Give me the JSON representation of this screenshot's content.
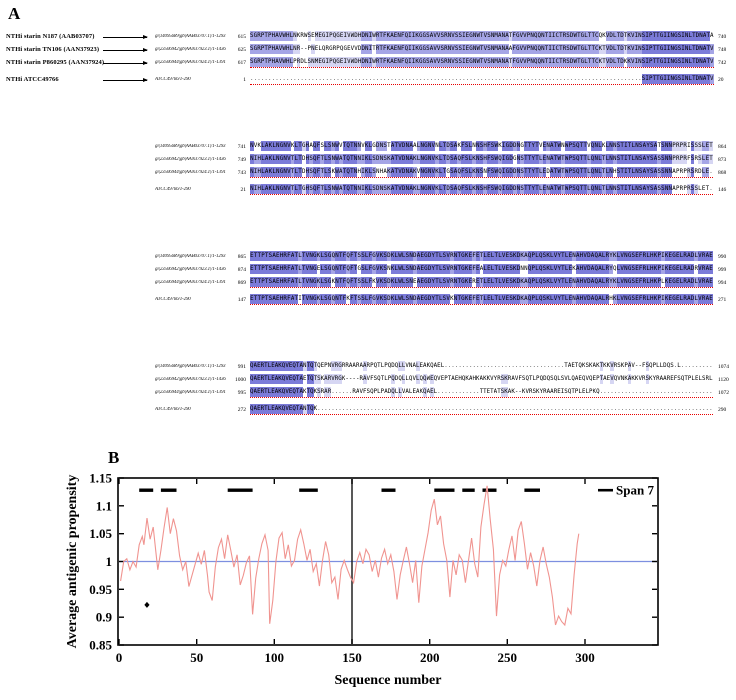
{
  "figure": {
    "panel_a_label": "A",
    "panel_b_label": "B"
  },
  "alignment": {
    "strain_labels": [
      "NTHi starin N187 (AAB03707)",
      "NTHi starin TN106 (AAN37923)",
      "NTHi starin P860295 (AAN37924)",
      "NTHi ATCC49766"
    ],
    "row_ids": [
      "gi|14095689|gb|AAB03707.1|/1-1293",
      "gi|23506942|gb|AAN37923.1|/1-1436",
      "gi|23506944|gb|AAN37924.1|/1-1391",
      "ATCC49766/1-290"
    ],
    "colors": {
      "conserved_dark": "#7b7bd9",
      "conserved_medium": "#a5a5e6",
      "conserved_light": "#d6d6f3",
      "underline_red": "#e80000"
    },
    "blocks": [
      {
        "starts": [
          615,
          625,
          617,
          1
        ],
        "ends": [
          740,
          748,
          742,
          20
        ],
        "seqs": [
          "SGRPTPHAVWHLNKRWSEMEGIPQGEIVWDHDNIWRTFKAENFQIIKGGSAVVSRNVSSIEGNWTVSNMANATFGVVPNQQNTIICTRSDWTGLTTCQKVDLTDTKVINSIPTTGIINGSINLTDNATA",
          "SGRPTPHAVWHLNR--PNELQRGRPQGEVVDDNITRTFKAENFQIIKGGSAVVSRNVSSIEGNWTVSNMANAAFGVVPNQQNTIICTRSDWTGLTTCKTVDLTDTKVINSIPTTGIINGSINLTDNATV",
          "SGRPTPHAVWHLPRDLSNMEGIPQGEIVWDHDNIWRTFKAENFQIIKGGSAVVSRNVSSIEGNWTVSNMANATFGVVPNQQNTIICTRSDWTGLTTCKTVDLTDKKVINSIPTTGIINGSINLTDNATV",
          ".............................................................................................................SIPTTGIINGSINLTDNATV"
        ]
      },
      {
        "starts": [
          741,
          749,
          743,
          21
        ],
        "ends": [
          864,
          873,
          868,
          146
        ],
        "seqs": [
          "NVKLAKLNGNVKLTGHAQFSLSNWVTQTNNVKLGDNSTATVDNAALNGNVNLTDSAKFSLNNSHFSWKIGDDNGTTYTVENATWNWPSQTTVQNLKLNNSTITLNSAYSATSNNPRPRISSSLET",
          "NIHLAKLNGNVTLTDHSQFTLSNWATQTNNIKLSDNSKATVDNAKLNGNVKLTDSAQFSLKNSHFSWQIGDGNSTTYTLENATWTWPSQTTLQNLTLNNSTITLNSAYSASSNNPRPRFSRSLET",
          "NIHLAKLNGNVTLTDHSQFTLSKWATQTNHIKLSNHAKATVDNAKVNGNVKLTGSAQFSLKNSNFSWQIGDDNSTTYTLEDATWTWPSQTTLQNLTLNHSTITLNSAYSASSNNAPRPRSRDLE",
          "NIHLAKLNGNVTLTGHSQFTLSNWATQTNNIKLSDNSKATVDNAKLNGNVKLTDSAQFSLKNSHFSWQIGDDNSTTYTLENATWTWPSQTTLQNLTLNNSTITLNSAYSASSNNAPRPRSSLET"
        ]
      },
      {
        "starts": [
          865,
          874,
          869,
          147
        ],
        "ends": [
          990,
          999,
          994,
          271
        ],
        "seqs": [
          "ETTPTSAEHRFATLTVNGKLSGQNTFQFTSSLFGVKSDKLWLSNDAEGDYTLSVRNTGKEFETLELTLVESKDKAQPLQSKLVYTLENAHVDAQALRYKLVNGSEFRLHKPIKEGELRADLVRAE",
          "ETTPTSAEHRFATLTVNGELSGQNTFQFTGSLFGVKSNKLWLSNDAEGDYTLSVRNTGKEFEALELTLVESKDNNQPLQSKLVYTLEKAHVDAQALRYQLVNGSEFRLHKPIKEGELRADRVRAE",
          "ETTPTSAEHRFATLTVNGKLSGKNTFQFTSSLFKVKSDKLWLSNEAEGDYTLSVRNTGKERETLELTLVESKDKAQPLQSKLVYTLENAHVDAQALRYKLVNGSEFRLHKPLKEGELRADLVRAE",
          "ETTPTSAEHRFATITVNGKLSGQNTFKFTSSLFGVKSDKLWLSNDAEGDYTLSVKNTGKEFETLELTLVESKDKAQPLQSKLVYTLENAHVDAQALRHKLVNGSEFRLHKPIKEGELRADLVRAE"
        ]
      },
      {
        "starts": [
          991,
          1000,
          995,
          272
        ],
        "ends": [
          1074,
          1120,
          1072,
          290
        ],
        "seqs": [
          "QAERTLEAKQVEQTANTQTQEPNVRGRRAARAARPQTLPQDQLLVNALEAKQAEL..................................TAETQKSKAKTKKVRSKPAV--FSQPLLDQS.L",
          "QAERTLEAKQVEQTAETQTSKARVRGK----RAVFSQTLPQDQLLQVLQQWEQVEPTAEHQKAHKAKKVYRSKRAVFSQTLPQDQSQLSVLQAEQVQEPTAEVQVNKAKKVRSKYRAAREFSQTPLELSRL",
          "QAERTLEAKQVEQTAKTQKSRAR......RAVFSQPLPADQLLVALEAKQAEL............TTETATSKAK--KVRSKYRAAREISQTPLELPKQ",
          "QAERTLEAKQVEQTANTQK"
        ]
      }
    ]
  },
  "chart_data": {
    "type": "line",
    "title": "",
    "xlabel": "Sequence number",
    "ylabel": "Average antigenic propensity",
    "xlim": [
      0,
      300
    ],
    "ylim": [
      0.85,
      1.15
    ],
    "xticks": [
      0,
      50,
      100,
      150,
      200,
      250,
      300
    ],
    "yticks": [
      1.15,
      1.1,
      1.05,
      1,
      0.95,
      0.9,
      0.85
    ],
    "ytick_labels": [
      "1.15",
      "1.1",
      "1.05",
      "1",
      "0.95",
      "0.9",
      "0.85"
    ],
    "grid": false,
    "legend": {
      "label": "Span 7",
      "position": "top-right"
    },
    "baseline": {
      "y": 1,
      "color": "#7d8fe0"
    },
    "divider": {
      "x": 150,
      "color": "#222222"
    },
    "series": [
      {
        "name": "Span 7",
        "color": "#f09490",
        "points": [
          [
            1,
            0.965
          ],
          [
            3,
            1.0
          ],
          [
            5,
            1.005
          ],
          [
            7,
            0.985
          ],
          [
            9,
            1.0
          ],
          [
            11,
            0.99
          ],
          [
            13,
            1.03
          ],
          [
            15,
            1.045
          ],
          [
            16,
            1.03
          ],
          [
            18,
            1.078
          ],
          [
            20,
            1.04
          ],
          [
            22,
            1.062
          ],
          [
            24,
            1.01
          ],
          [
            25,
            0.985
          ],
          [
            27,
            1.02
          ],
          [
            29,
            1.06
          ],
          [
            31,
            1.097
          ],
          [
            33,
            1.05
          ],
          [
            35,
            1.077
          ],
          [
            37,
            1.055
          ],
          [
            39,
            1.01
          ],
          [
            41,
            0.985
          ],
          [
            43,
            1.0
          ],
          [
            45,
            0.955
          ],
          [
            47,
            0.975
          ],
          [
            49,
            0.995
          ],
          [
            51,
            1.015
          ],
          [
            53,
            0.995
          ],
          [
            55,
            1.02
          ],
          [
            57,
            0.975
          ],
          [
            58,
            0.945
          ],
          [
            60,
            0.93
          ],
          [
            62,
            0.99
          ],
          [
            64,
            1.025
          ],
          [
            66,
            1.04
          ],
          [
            68,
            1.005
          ],
          [
            70,
            1.048
          ],
          [
            72,
            1.02
          ],
          [
            74,
            0.99
          ],
          [
            76,
            1.012
          ],
          [
            78,
            0.958
          ],
          [
            80,
            0.975
          ],
          [
            82,
            0.998
          ],
          [
            84,
            1.01
          ],
          [
            86,
            0.905
          ],
          [
            88,
            0.97
          ],
          [
            90,
            1.005
          ],
          [
            92,
            1.032
          ],
          [
            94,
            1.048
          ],
          [
            96,
            1.02
          ],
          [
            97,
            0.888
          ],
          [
            99,
            0.93
          ],
          [
            101,
            1.0
          ],
          [
            103,
            1.042
          ],
          [
            105,
            1.052
          ],
          [
            107,
            1.005
          ],
          [
            109,
            1.03
          ],
          [
            111,
            0.992
          ],
          [
            113,
            1.002
          ],
          [
            115,
            1.04
          ],
          [
            117,
            1.057
          ],
          [
            119,
            1.032
          ],
          [
            121,
            1.002
          ],
          [
            123,
            1.022
          ],
          [
            125,
            0.982
          ],
          [
            127,
            0.996
          ],
          [
            129,
            0.956
          ],
          [
            131,
            1.002
          ],
          [
            133,
            1.036
          ],
          [
            135,
            1.012
          ],
          [
            137,
            0.962
          ],
          [
            139,
            0.972
          ],
          [
            141,
            0.932
          ],
          [
            143,
            0.986
          ],
          [
            145,
            1.002
          ],
          [
            147,
            0.986
          ],
          [
            149,
            0.972
          ],
          [
            151,
            0.962
          ],
          [
            153,
            1.0
          ],
          [
            155,
            1.016
          ],
          [
            157,
            0.996
          ],
          [
            159,
            1.022
          ],
          [
            161,
            1.012
          ],
          [
            163,
            0.982
          ],
          [
            165,
            1.002
          ],
          [
            167,
            0.972
          ],
          [
            169,
            1.006
          ],
          [
            171,
            1.022
          ],
          [
            173,
            0.996
          ],
          [
            175,
            1.012
          ],
          [
            177,
            0.982
          ],
          [
            179,
            0.932
          ],
          [
            181,
            0.976
          ],
          [
            183,
            1.002
          ],
          [
            185,
            1.026
          ],
          [
            187,
            0.996
          ],
          [
            189,
            0.962
          ],
          [
            191,
            1.002
          ],
          [
            193,
            0.926
          ],
          [
            195,
            0.992
          ],
          [
            197,
            1.022
          ],
          [
            199,
            1.052
          ],
          [
            201,
            1.092
          ],
          [
            203,
            1.112
          ],
          [
            205,
            1.066
          ],
          [
            207,
            1.082
          ],
          [
            209,
            1.032
          ],
          [
            211,
            1.002
          ],
          [
            213,
            0.936
          ],
          [
            215,
            1.002
          ],
          [
            217,
            0.976
          ],
          [
            219,
            1.012
          ],
          [
            221,
            1.002
          ],
          [
            223,
            0.962
          ],
          [
            225,
            1.002
          ],
          [
            227,
            1.042
          ],
          [
            229,
            0.996
          ],
          [
            231,
            0.972
          ],
          [
            233,
            1.062
          ],
          [
            235,
            1.102
          ],
          [
            237,
            1.136
          ],
          [
            239,
            1.076
          ],
          [
            241,
            1.022
          ],
          [
            243,
            0.902
          ],
          [
            245,
            0.976
          ],
          [
            247,
            1.002
          ],
          [
            249,
            0.992
          ],
          [
            251,
            1.022
          ],
          [
            253,
            1.046
          ],
          [
            255,
            1.002
          ],
          [
            257,
            1.056
          ],
          [
            259,
            1.072
          ],
          [
            261,
            1.032
          ],
          [
            263,
            0.986
          ],
          [
            265,
            1.016
          ],
          [
            267,
            0.992
          ],
          [
            269,
            0.956
          ],
          [
            271,
            1.002
          ],
          [
            273,
            1.026
          ],
          [
            275,
            0.996
          ],
          [
            277,
            0.972
          ],
          [
            279,
            0.936
          ],
          [
            281,
            0.886
          ],
          [
            283,
            0.902
          ],
          [
            285,
            0.892
          ],
          [
            287,
            0.886
          ],
          [
            289,
            0.916
          ],
          [
            291,
            0.906
          ],
          [
            293,
            0.976
          ],
          [
            295,
            1.032
          ],
          [
            296,
            1.05
          ]
        ]
      }
    ],
    "epitope_bars": {
      "y": 1.128,
      "color": "#000000",
      "segments": [
        [
          13,
          22
        ],
        [
          27,
          37
        ],
        [
          70,
          86
        ],
        [
          116,
          128
        ],
        [
          169,
          178
        ],
        [
          203,
          216
        ],
        [
          221,
          229
        ],
        [
          234,
          243
        ],
        [
          261,
          271
        ]
      ]
    },
    "marker": {
      "x": 18,
      "y": 0.922,
      "shape": "diamond",
      "color": "#000000"
    }
  }
}
